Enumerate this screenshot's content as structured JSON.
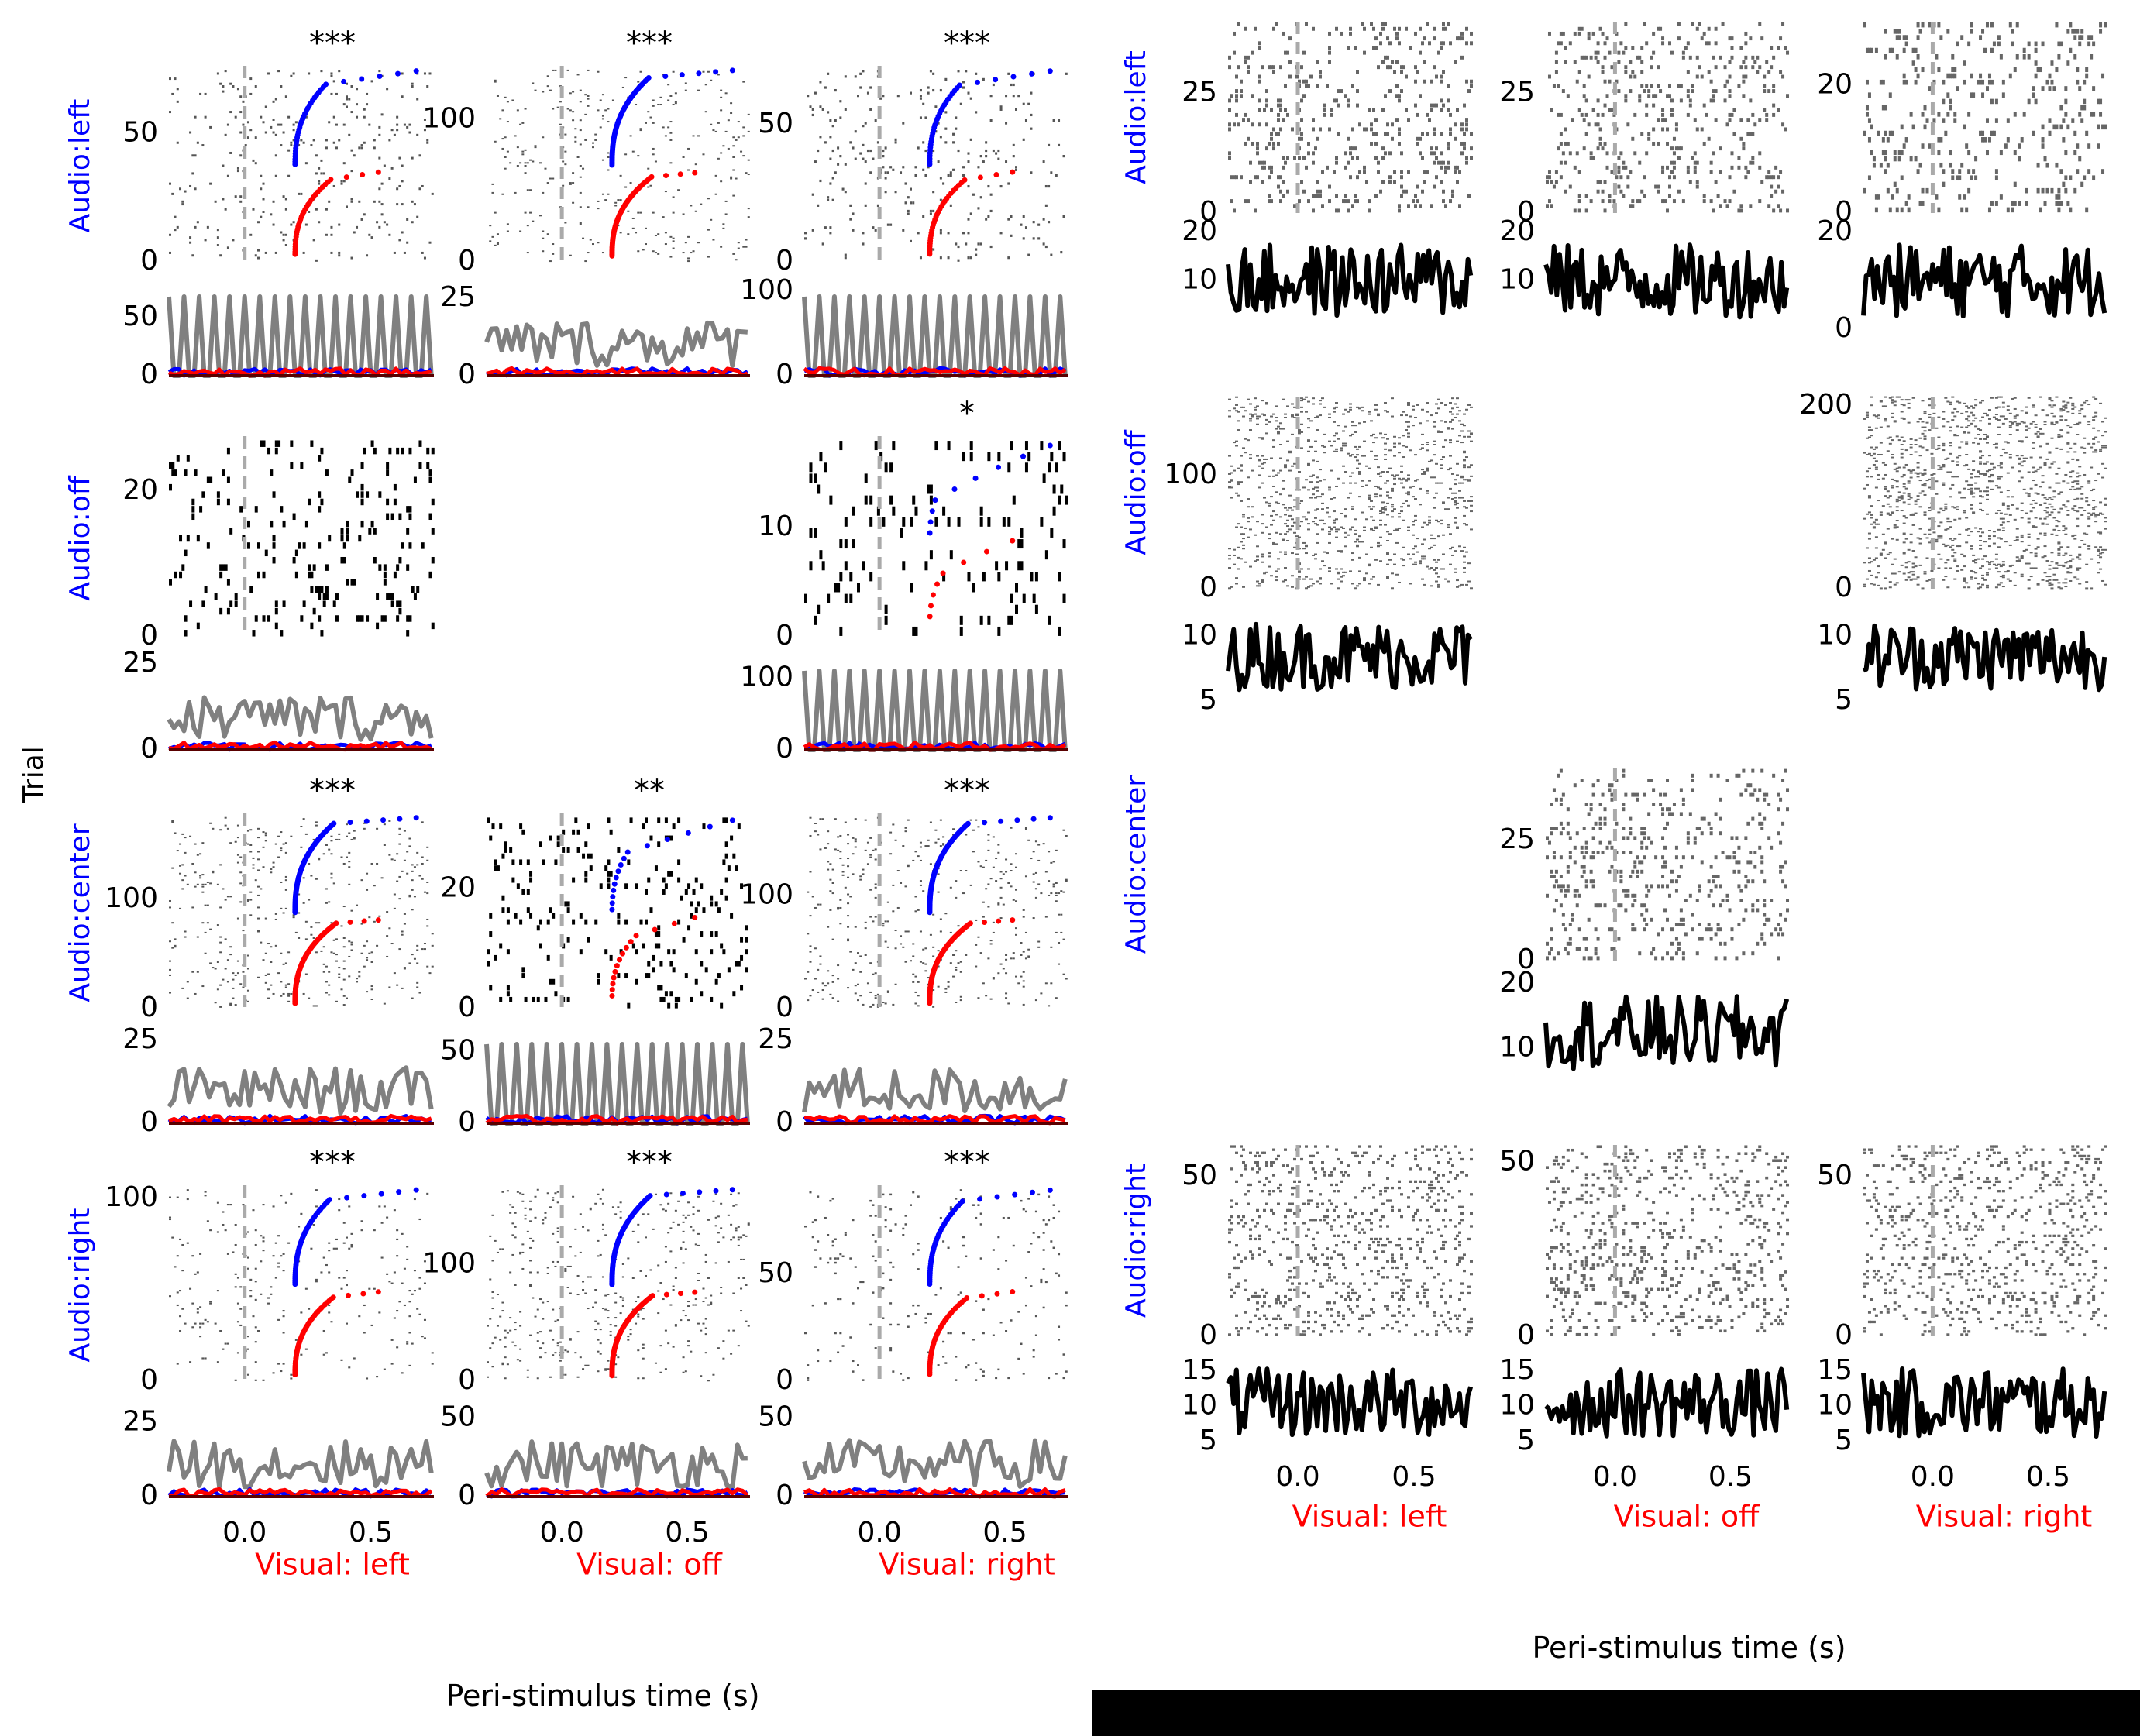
{
  "figure": {
    "left_xlabel": "Peri-stimulus time (s)",
    "right_xlabel": "Peri-stimulus time (s)",
    "ylabel": "Trial",
    "rows": [
      "Audio:left",
      "Audio:off",
      "Audio:center",
      "Audio:right"
    ],
    "cols": [
      "Visual:  left",
      "Visual:  off",
      "Visual:  right"
    ],
    "colors": {
      "audio": "#0000ff",
      "visual": "#ff0000",
      "psth": "#808080",
      "dark": "#000000",
      "onset": "#aaaaaa"
    }
  },
  "chart_data": [
    {
      "panel": "left",
      "type": "raster+psth",
      "x_range": [
        -0.3,
        0.75
      ],
      "x_ticks": [
        0.0,
        0.5
      ],
      "x_tick_labels": [
        "0.0",
        "0.5"
      ],
      "cells": [
        {
          "row": "Audio:left",
          "col": "Visual:  left",
          "stars": "***",
          "trials": 75,
          "raster_ticks": [
            0,
            50
          ],
          "psth_max": 80,
          "psth_ticks": [
            0,
            50
          ]
        },
        {
          "row": "Audio:left",
          "col": "Visual:  off",
          "stars": "***",
          "trials": 135,
          "raster_ticks": [
            0,
            100
          ],
          "psth_max": 30,
          "psth_ticks": [
            0,
            25
          ]
        },
        {
          "row": "Audio:left",
          "col": "Visual:  right",
          "stars": "***",
          "trials": 70,
          "raster_ticks": [
            0,
            50
          ],
          "psth_max": 110,
          "psth_ticks": [
            0,
            100
          ]
        },
        {
          "row": "Audio:off",
          "col": "Visual:  left",
          "stars": "",
          "trials": 27,
          "raster_ticks": [
            0,
            20
          ],
          "psth_max": 27,
          "psth_ticks": [
            0,
            25
          ]
        },
        {
          "row": "Audio:off",
          "col": "Visual:  right",
          "stars": "*",
          "trials": 18,
          "raster_ticks": [
            0,
            10
          ],
          "psth_max": 130,
          "psth_ticks": [
            0,
            100
          ]
        },
        {
          "row": "Audio:center",
          "col": "Visual:  left",
          "stars": "***",
          "trials": 175,
          "raster_ticks": [
            0,
            100
          ],
          "psth_max": 28,
          "psth_ticks": [
            0,
            25
          ]
        },
        {
          "row": "Audio:center",
          "col": "Visual:  off",
          "stars": "**",
          "trials": 32,
          "raster_ticks": [
            0,
            20
          ],
          "psth_max": 65,
          "psth_ticks": [
            0,
            50
          ]
        },
        {
          "row": "Audio:center",
          "col": "Visual:  right",
          "stars": "***",
          "trials": 170,
          "raster_ticks": [
            0,
            100
          ],
          "psth_max": 28,
          "psth_ticks": [
            0,
            25
          ]
        },
        {
          "row": "Audio:right",
          "col": "Visual:  left",
          "stars": "***",
          "trials": 105,
          "raster_ticks": [
            0,
            100
          ],
          "psth_max": 32,
          "psth_ticks": [
            0,
            25
          ]
        },
        {
          "row": "Audio:right",
          "col": "Visual:  off",
          "stars": "***",
          "trials": 165,
          "raster_ticks": [
            0,
            100
          ],
          "psth_max": 60,
          "psth_ticks": [
            0,
            50
          ]
        },
        {
          "row": "Audio:right",
          "col": "Visual:  right",
          "stars": "***",
          "trials": 90,
          "raster_ticks": [
            0,
            50
          ],
          "psth_max": 60,
          "psth_ticks": [
            0,
            50
          ]
        }
      ]
    },
    {
      "panel": "right",
      "type": "raster+psth",
      "x_range": [
        -0.3,
        0.75
      ],
      "x_ticks": [
        0.0,
        0.5
      ],
      "x_tick_labels": [
        "0.0",
        "0.5"
      ],
      "cells": [
        {
          "row": "Audio:left",
          "col": "Visual:  left",
          "trials": 40,
          "raster_ticks": [
            0,
            25
          ],
          "psth_range": [
            0,
            20
          ],
          "psth_ticks": [
            10,
            20
          ]
        },
        {
          "row": "Audio:left",
          "col": "Visual:  off",
          "trials": 40,
          "raster_ticks": [
            0,
            25
          ],
          "psth_range": [
            0,
            20
          ],
          "psth_ticks": [
            10,
            20
          ]
        },
        {
          "row": "Audio:left",
          "col": "Visual:  right",
          "trials": 30,
          "raster_ticks": [
            0,
            20
          ],
          "psth_range": [
            0,
            20
          ],
          "psth_ticks": [
            0,
            20
          ]
        },
        {
          "row": "Audio:off",
          "col": "Visual:  left",
          "trials": 170,
          "raster_ticks": [
            0,
            100
          ],
          "psth_range": [
            5,
            12
          ],
          "psth_ticks": [
            5,
            10
          ]
        },
        {
          "row": "Audio:off",
          "col": "Visual:  right",
          "trials": 210,
          "raster_ticks": [
            0,
            200
          ],
          "psth_range": [
            5,
            12
          ],
          "psth_ticks": [
            5,
            10
          ]
        },
        {
          "row": "Audio:center",
          "col": "Visual:  off",
          "trials": 40,
          "raster_ticks": [
            0,
            25
          ],
          "psth_range": [
            5,
            20
          ],
          "psth_ticks": [
            10,
            20
          ]
        },
        {
          "row": "Audio:right",
          "col": "Visual:  left",
          "trials": 60,
          "raster_ticks": [
            0,
            50
          ],
          "psth_range": [
            4,
            17
          ],
          "psth_ticks": [
            5,
            10,
            15
          ]
        },
        {
          "row": "Audio:right",
          "col": "Visual:  off",
          "trials": 55,
          "raster_ticks": [
            0,
            50
          ],
          "psth_range": [
            4,
            17
          ],
          "psth_ticks": [
            5,
            10,
            15
          ]
        },
        {
          "row": "Audio:right",
          "col": "Visual:  right",
          "trials": 60,
          "raster_ticks": [
            0,
            50
          ],
          "psth_range": [
            4,
            17
          ],
          "psth_ticks": [
            5,
            10,
            15
          ]
        }
      ]
    }
  ]
}
